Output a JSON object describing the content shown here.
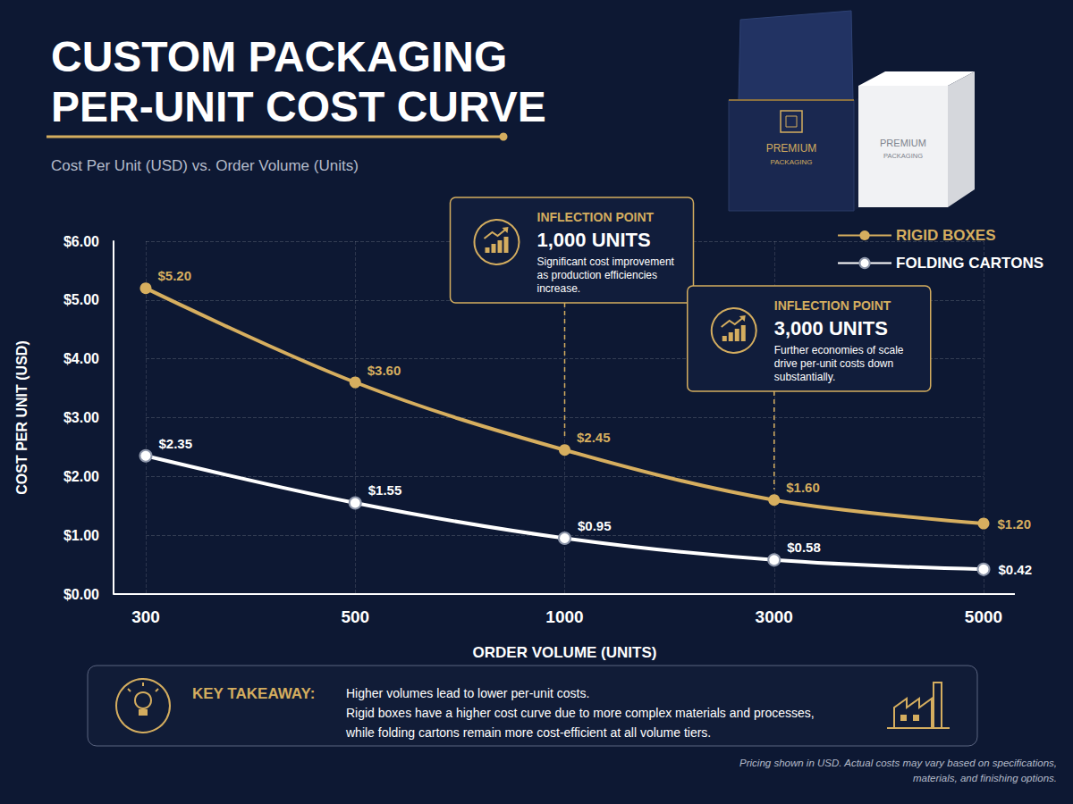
{
  "chart_data": {
    "type": "line",
    "title": [
      "CUSTOM PACKAGING",
      "PER-UNIT COST CURVE"
    ],
    "subtitle": "Cost Per Unit (USD) vs. Order Volume (Units)",
    "x_label": "ORDER VOLUME (UNITS)",
    "y_label": "COST PER UNIT (USD)",
    "categories": [
      "300",
      "500",
      "1000",
      "3000",
      "5000"
    ],
    "series": [
      {
        "name": "RIGID BOXES",
        "color": "#d6ae5f",
        "marker": "circle",
        "line_style": "solid",
        "values": [
          5.2,
          3.6,
          2.45,
          1.6,
          1.2
        ],
        "value_labels": [
          "$5.20",
          "$3.60",
          "$2.45",
          "$1.60",
          "$1.20"
        ]
      },
      {
        "name": "FOLDING CARTONS",
        "color": "#ffffff",
        "marker": "circle",
        "line_style": "solid",
        "values": [
          2.35,
          1.55,
          0.95,
          0.58,
          0.42
        ],
        "value_labels": [
          "$2.35",
          "$1.55",
          "$0.95",
          "$0.58",
          "$0.42"
        ]
      }
    ],
    "ylim": [
      0,
      6
    ],
    "yticks": [
      {
        "value": 0,
        "label": "$0.00"
      },
      {
        "value": 1,
        "label": "$1.00"
      },
      {
        "value": 2,
        "label": "$2.00"
      },
      {
        "value": 3,
        "label": "$3.00"
      },
      {
        "value": 4,
        "label": "$4.00"
      },
      {
        "value": 5,
        "label": "$5.00"
      },
      {
        "value": 6,
        "label": "$6.00"
      }
    ],
    "grid": true,
    "legend": "top-right",
    "data_labels": true,
    "annotations": [
      {
        "label": "INFLECTION POINT",
        "title": "1,000 UNITS",
        "text": [
          "Significant cost improvement",
          "as production efficiencies",
          "increase."
        ],
        "category": "1000"
      },
      {
        "label": "INFLECTION POINT",
        "title": "3,000 UNITS",
        "text": [
          "Further economies of scale",
          "drive per-unit costs down",
          "substantially."
        ],
        "category": "3000"
      }
    ],
    "key_takeaway": {
      "label": "KEY TAKEAWAY:",
      "text": [
        "Higher volumes lead to lower per-unit costs.",
        "Rigid boxes have a higher cost curve due to more complex materials and processes,",
        "while folding cartons remain more cost-efficient at all volume tiers."
      ]
    },
    "footnote": [
      "Pricing shown in USD. Actual costs may vary based on specifications,",
      "materials, and finishing options."
    ],
    "product_labels": [
      [
        "PREMIUM",
        "PACKAGING"
      ],
      [
        "PREMIUM",
        "PACKAGING"
      ]
    ]
  }
}
